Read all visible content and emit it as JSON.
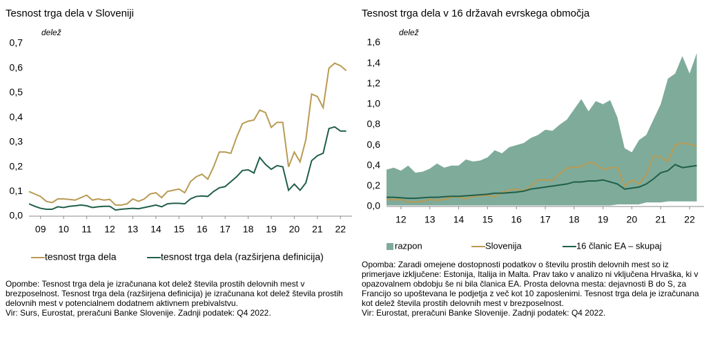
{
  "chart_data": [
    {
      "type": "line",
      "title": "Tesnost trga dela v Sloveniji",
      "ylabel": "delež",
      "x": [
        2009,
        2009.25,
        2009.5,
        2009.75,
        2010,
        2010.25,
        2010.5,
        2010.75,
        2011,
        2011.25,
        2011.5,
        2011.75,
        2012,
        2012.25,
        2012.5,
        2012.75,
        2013,
        2013.25,
        2013.5,
        2013.75,
        2014,
        2014.25,
        2014.5,
        2014.75,
        2015,
        2015.25,
        2015.5,
        2015.75,
        2016,
        2016.25,
        2016.5,
        2016.75,
        2017,
        2017.25,
        2017.5,
        2017.75,
        2018,
        2018.25,
        2018.5,
        2018.75,
        2019,
        2019.25,
        2019.5,
        2019.75,
        2020,
        2020.25,
        2020.5,
        2020.75,
        2021,
        2021.25,
        2021.5,
        2021.75,
        2022,
        2022.25,
        2022.5,
        2022.75
      ],
      "xlim": [
        2009,
        2023
      ],
      "xticks": [
        {
          "value": 2009.5,
          "label": "09"
        },
        {
          "value": 2010.5,
          "label": "10"
        },
        {
          "value": 2011.5,
          "label": "11"
        },
        {
          "value": 2012.5,
          "label": "12"
        },
        {
          "value": 2013.5,
          "label": "13"
        },
        {
          "value": 2014.5,
          "label": "14"
        },
        {
          "value": 2015.5,
          "label": "15"
        },
        {
          "value": 2016.5,
          "label": "16"
        },
        {
          "value": 2017.5,
          "label": "17"
        },
        {
          "value": 2018.5,
          "label": "18"
        },
        {
          "value": 2019.5,
          "label": "19"
        },
        {
          "value": 2020.5,
          "label": "20"
        },
        {
          "value": 2021.5,
          "label": "21"
        },
        {
          "value": 2022.5,
          "label": "22"
        }
      ],
      "ylim": [
        0,
        0.7
      ],
      "yticks": [
        {
          "value": 0,
          "label": "0,0"
        },
        {
          "value": 0.1,
          "label": "0,1"
        },
        {
          "value": 0.2,
          "label": "0,2"
        },
        {
          "value": 0.3,
          "label": "0,3"
        },
        {
          "value": 0.4,
          "label": "0,4"
        },
        {
          "value": 0.5,
          "label": "0,5"
        },
        {
          "value": 0.6,
          "label": "0,6"
        },
        {
          "value": 0.7,
          "label": "0,7"
        }
      ],
      "grid": false,
      "series": [
        {
          "name": "tesnost trga dela",
          "color": "#b89a52",
          "values": [
            0.1,
            0.09,
            0.08,
            0.06,
            0.055,
            0.07,
            0.07,
            0.068,
            0.065,
            0.075,
            0.085,
            0.065,
            0.07,
            0.065,
            0.068,
            0.045,
            0.045,
            0.05,
            0.07,
            0.06,
            0.07,
            0.09,
            0.095,
            0.075,
            0.1,
            0.105,
            0.11,
            0.095,
            0.14,
            0.16,
            0.17,
            0.15,
            0.2,
            0.26,
            0.26,
            0.255,
            0.32,
            0.375,
            0.385,
            0.39,
            0.43,
            0.42,
            0.36,
            0.38,
            0.38,
            0.2,
            0.26,
            0.22,
            0.31,
            0.495,
            0.485,
            0.44,
            0.6,
            0.62,
            0.61,
            0.59
          ]
        },
        {
          "name": "tesnost trga dela (razširjena definicija)",
          "color": "#1f5e48",
          "values": [
            0.05,
            0.04,
            0.032,
            0.028,
            0.028,
            0.038,
            0.035,
            0.04,
            0.042,
            0.045,
            0.042,
            0.035,
            0.038,
            0.04,
            0.04,
            0.025,
            0.028,
            0.03,
            0.032,
            0.03,
            0.035,
            0.04,
            0.045,
            0.038,
            0.05,
            0.052,
            0.052,
            0.05,
            0.07,
            0.08,
            0.082,
            0.08,
            0.1,
            0.115,
            0.12,
            0.14,
            0.16,
            0.185,
            0.188,
            0.175,
            0.238,
            0.21,
            0.19,
            0.205,
            0.2,
            0.105,
            0.13,
            0.105,
            0.135,
            0.225,
            0.245,
            0.255,
            0.355,
            0.362,
            0.345,
            0.345
          ]
        }
      ],
      "note": "Opombe: Tesnost trga dela je izračunana kot delež števila prostih delovnih mest v brezposelnost. Tesnost trga dela (razširjena definicija) je izračunana kot delež števila prostih delovnih mest v potencialnem dodatnem aktivnem prebivalstvu.",
      "source": "Vir: Surs, Eurostat, preračuni Banke Slovenije. Zadnji podatek: Q4 2022."
    },
    {
      "type": "line",
      "title": "Tesnost trga dela v 16 državah evrskega območja",
      "ylabel": "delež",
      "x": [
        2012,
        2012.25,
        2012.5,
        2012.75,
        2013,
        2013.25,
        2013.5,
        2013.75,
        2014,
        2014.25,
        2014.5,
        2014.75,
        2015,
        2015.25,
        2015.5,
        2015.75,
        2016,
        2016.25,
        2016.5,
        2016.75,
        2017,
        2017.25,
        2017.5,
        2017.75,
        2018,
        2018.25,
        2018.5,
        2018.75,
        2019,
        2019.25,
        2019.5,
        2019.75,
        2020,
        2020.25,
        2020.5,
        2020.75,
        2021,
        2021.25,
        2021.5,
        2021.75,
        2022,
        2022.25,
        2022.5,
        2022.75
      ],
      "xlim": [
        2012,
        2023
      ],
      "xticks": [
        {
          "value": 2012.5,
          "label": "12"
        },
        {
          "value": 2013.5,
          "label": "13"
        },
        {
          "value": 2014.5,
          "label": "14"
        },
        {
          "value": 2015.5,
          "label": "15"
        },
        {
          "value": 2016.5,
          "label": "16"
        },
        {
          "value": 2017.5,
          "label": "17"
        },
        {
          "value": 2018.5,
          "label": "18"
        },
        {
          "value": 2019.5,
          "label": "19"
        },
        {
          "value": 2020.5,
          "label": "20"
        },
        {
          "value": 2021.5,
          "label": "21"
        },
        {
          "value": 2022.5,
          "label": "22"
        }
      ],
      "ylim": [
        0,
        1.6
      ],
      "yticks": [
        {
          "value": 0,
          "label": "0,0"
        },
        {
          "value": 0.2,
          "label": "0,2"
        },
        {
          "value": 0.4,
          "label": "0,4"
        },
        {
          "value": 0.6,
          "label": "0,6"
        },
        {
          "value": 0.8,
          "label": "0,8"
        },
        {
          "value": 1,
          "label": "1,0"
        },
        {
          "value": 1.2,
          "label": "1,2"
        },
        {
          "value": 1.4,
          "label": "1,4"
        },
        {
          "value": 1.6,
          "label": "1,6"
        }
      ],
      "grid": false,
      "series": [
        {
          "name": "razpon",
          "color": "#7fab9b",
          "kind": "range",
          "values": [
            0.36,
            0.38,
            0.35,
            0.4,
            0.33,
            0.34,
            0.37,
            0.42,
            0.38,
            0.4,
            0.4,
            0.46,
            0.44,
            0.45,
            0.48,
            0.55,
            0.52,
            0.58,
            0.6,
            0.62,
            0.67,
            0.7,
            0.75,
            0.74,
            0.8,
            0.85,
            0.95,
            1.05,
            0.93,
            1.03,
            1.0,
            1.04,
            0.87,
            0.57,
            0.53,
            0.65,
            0.7,
            0.85,
            1.0,
            1.25,
            1.3,
            1.47,
            1.3,
            1.5
          ],
          "lower": [
            0.01,
            0.01,
            0.01,
            0.01,
            0.01,
            0.01,
            0.01,
            0.01,
            0.01,
            0.01,
            0.01,
            0.01,
            0.01,
            0.01,
            0.01,
            0.01,
            0.01,
            0.01,
            0.01,
            0.01,
            0.01,
            0.01,
            0.01,
            0.01,
            0.01,
            0.01,
            0.01,
            0.01,
            0.01,
            0.01,
            0.01,
            0.01,
            0.02,
            0.02,
            0.02,
            0.02,
            0.04,
            0.04,
            0.04,
            0.05,
            0.05,
            0.05,
            0.05,
            0.05
          ]
        },
        {
          "name": "Slovenija",
          "color": "#b89a52",
          "values": [
            0.07,
            0.065,
            0.068,
            0.045,
            0.045,
            0.05,
            0.07,
            0.06,
            0.07,
            0.09,
            0.095,
            0.075,
            0.1,
            0.105,
            0.11,
            0.095,
            0.14,
            0.16,
            0.17,
            0.15,
            0.2,
            0.26,
            0.26,
            0.255,
            0.32,
            0.375,
            0.385,
            0.39,
            0.43,
            0.42,
            0.36,
            0.38,
            0.38,
            0.2,
            0.26,
            0.22,
            0.31,
            0.495,
            0.485,
            0.44,
            0.6,
            0.62,
            0.61,
            0.59
          ]
        },
        {
          "name": "16 članic EA – skupaj",
          "color": "#1f5e48",
          "values": [
            0.09,
            0.09,
            0.085,
            0.08,
            0.08,
            0.085,
            0.09,
            0.09,
            0.095,
            0.1,
            0.1,
            0.105,
            0.11,
            0.115,
            0.12,
            0.13,
            0.13,
            0.135,
            0.14,
            0.15,
            0.17,
            0.18,
            0.19,
            0.2,
            0.21,
            0.22,
            0.24,
            0.24,
            0.25,
            0.25,
            0.26,
            0.24,
            0.22,
            0.17,
            0.18,
            0.19,
            0.22,
            0.27,
            0.33,
            0.35,
            0.41,
            0.38,
            0.39,
            0.4
          ]
        }
      ],
      "note": "Opomba: Zaradi omejene dostopnosti podatkov o številu prostih delovnih mest so iz primerjave izključene: Estonija, Italija in Malta. Prav tako v analizo ni vključena Hrvaška, ki v opazovalnem obdobju še ni bila članica EA. Prosta delovna mesta: dejavnosti B do S, za Francijo so upoštevana le podjetja z več kot 10 zaposlenimi. Tesnost trga dela je izračunana kot delež števila prostih delovnih mest v brezposelnost.",
      "source": "Vir: Eurostat, preračuni Banke Slovenije. Zadnji podatek: Q4 2022."
    }
  ]
}
